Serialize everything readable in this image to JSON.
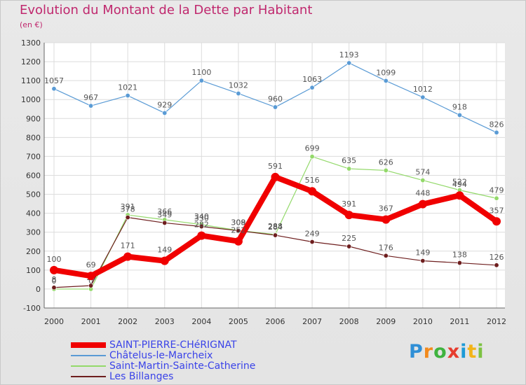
{
  "header": {
    "title": "Evolution du Montant de la Dette par Habitant",
    "subtitle": "(en €)"
  },
  "logo": {
    "text": "Proxiti",
    "letter_colors": [
      "#2f8fd6",
      "#f28a1c",
      "#3fb33f",
      "#e63c2e",
      "#1d9ad6",
      "#f2b418",
      "#7cc242"
    ]
  },
  "chart_data": {
    "type": "line",
    "x": [
      "2000",
      "2001",
      "2002",
      "2003",
      "2004",
      "2005",
      "2006",
      "2007",
      "2008",
      "2009",
      "2010",
      "2011",
      "2012"
    ],
    "ylim": [
      -100,
      1300
    ],
    "yticks": [
      "-100",
      "0",
      "100",
      "200",
      "300",
      "400",
      "500",
      "600",
      "700",
      "800",
      "900",
      "1000",
      "1100",
      "1200",
      "1300"
    ],
    "grid": true,
    "legend_position": "bottom-left",
    "series": [
      {
        "name": "Châtelus-le-Marcheix",
        "color": "#5a9bd5",
        "values": [
          1057,
          967,
          1021,
          929,
          1100,
          1032,
          960,
          1063,
          1193,
          1099,
          1012,
          918,
          826
        ],
        "labels": [
          "1057",
          "967",
          "1021",
          "929",
          "1100",
          "1032",
          "960",
          "1063",
          "1193",
          "1099",
          "1012",
          "918",
          "826"
        ]
      },
      {
        "name": "Saint-Martin-Sainte-Catherine",
        "color": "#93d96a",
        "values": [
          0,
          0,
          391,
          366,
          340,
          309,
          288,
          699,
          635,
          626,
          574,
          522,
          479
        ],
        "labels": [
          "0",
          "0",
          "391",
          "366",
          "340",
          "309",
          "288",
          "699",
          "635",
          "626",
          "574",
          "522",
          "479"
        ]
      },
      {
        "name": "Les Billanges",
        "color": "#6e1e1e",
        "values": [
          8,
          18,
          378,
          349,
          330,
          308,
          284,
          249,
          225,
          176,
          149,
          138,
          126
        ],
        "labels": [
          "8",
          "18",
          "378",
          "349",
          "330",
          "308",
          "284",
          "249",
          "225",
          "176",
          "149",
          "138",
          "126"
        ]
      },
      {
        "name": "SAINT-PIERRE-CHéRIGNAT",
        "color": "#f00000",
        "values": [
          100,
          69,
          171,
          149,
          282,
          252,
          591,
          516,
          391,
          367,
          448,
          494,
          357
        ],
        "labels": [
          "100",
          "69",
          "171",
          "149",
          "282",
          "252",
          "591",
          "516",
          "391",
          "367",
          "448",
          "494",
          "357"
        ]
      }
    ],
    "legend": [
      {
        "name": "SAINT-PIERRE-CHéRIGNAT",
        "color": "#f00000"
      },
      {
        "name": "Châtelus-le-Marcheix",
        "color": "#5a9bd5"
      },
      {
        "name": "Saint-Martin-Sainte-Catherine",
        "color": "#93d96a"
      },
      {
        "name": "Les Billanges",
        "color": "#6e1e1e"
      }
    ]
  }
}
